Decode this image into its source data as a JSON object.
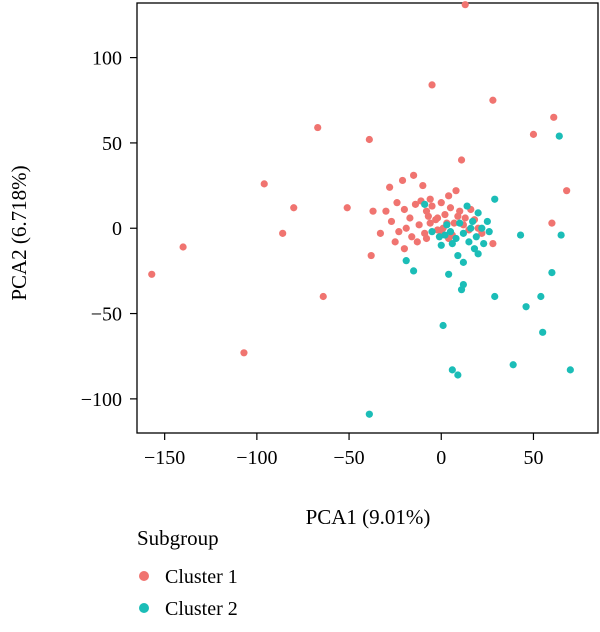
{
  "colors": {
    "cluster_1": "#F07470",
    "cluster_2": "#1BBDB7",
    "frame": "#000000",
    "background": "#ffffff"
  },
  "chart_data": {
    "type": "scatter",
    "title": "",
    "xlabel": "PCA1 (9.01%)",
    "ylabel": "PCA2 (6.718%)",
    "xlim": [
      -165,
      85
    ],
    "ylim": [
      -120,
      132
    ],
    "xticks": [
      -150,
      -100,
      -50,
      0,
      50
    ],
    "yticks": [
      -100,
      -50,
      0,
      50,
      100
    ],
    "xtick_labels": [
      "−150",
      "−100",
      "−50",
      "0",
      "50"
    ],
    "ytick_labels": [
      "−100",
      "−50",
      "0",
      "50",
      "100"
    ],
    "grid": false,
    "legend": {
      "title": "Subgroup",
      "position": "bottom-left"
    },
    "series": [
      {
        "name": "Cluster 1",
        "color": "#F07470",
        "points": [
          [
            13,
            131
          ],
          [
            -5,
            84
          ],
          [
            28,
            75
          ],
          [
            61,
            65
          ],
          [
            -67,
            59
          ],
          [
            50,
            55
          ],
          [
            -39,
            52
          ],
          [
            11,
            40
          ],
          [
            68,
            22
          ],
          [
            -96,
            26
          ],
          [
            -80,
            12
          ],
          [
            -51,
            12
          ],
          [
            -37,
            10
          ],
          [
            -140,
            -11
          ],
          [
            -86,
            -3
          ],
          [
            -38,
            -16
          ],
          [
            -157,
            -27
          ],
          [
            -64,
            -40
          ],
          [
            -107,
            -73
          ],
          [
            60,
            3
          ],
          [
            28,
            -9
          ],
          [
            -21,
            28
          ],
          [
            -15,
            31
          ],
          [
            -10,
            25
          ],
          [
            -6,
            17
          ],
          [
            4,
            19
          ],
          [
            8,
            22
          ],
          [
            -28,
            24
          ],
          [
            -24,
            15
          ],
          [
            -20,
            11
          ],
          [
            -17,
            6
          ],
          [
            -14,
            14
          ],
          [
            -11,
            16
          ],
          [
            -8,
            10
          ],
          [
            -5,
            13
          ],
          [
            -3,
            5
          ],
          [
            0,
            15
          ],
          [
            2,
            8
          ],
          [
            5,
            12
          ],
          [
            7,
            3
          ],
          [
            10,
            10
          ],
          [
            13,
            6
          ],
          [
            16,
            11
          ],
          [
            18,
            5
          ],
          [
            -30,
            10
          ],
          [
            -27,
            4
          ],
          [
            -23,
            -2
          ],
          [
            -19,
            0
          ],
          [
            -16,
            -5
          ],
          [
            -12,
            2
          ],
          [
            -9,
            -3
          ],
          [
            -6,
            3
          ],
          [
            -2,
            -1
          ],
          [
            1,
            0
          ],
          [
            4,
            -6
          ],
          [
            -33,
            -3
          ],
          [
            -25,
            -8
          ],
          [
            -20,
            -12
          ],
          [
            -13,
            -8
          ],
          [
            -8,
            -6
          ],
          [
            0,
            -2
          ],
          [
            6,
            -4
          ],
          [
            12,
            2
          ],
          [
            15,
            -1
          ],
          [
            -2,
            6
          ],
          [
            -7,
            7
          ],
          [
            3,
            3
          ],
          [
            9,
            7
          ],
          [
            20,
            0
          ],
          [
            22,
            -3
          ]
        ]
      },
      {
        "name": "Cluster 2",
        "color": "#1BBDB7",
        "points": [
          [
            64,
            54
          ],
          [
            29,
            17
          ],
          [
            -9,
            14
          ],
          [
            43,
            -4
          ],
          [
            65,
            -4
          ],
          [
            60,
            -26
          ],
          [
            -19,
            -19
          ],
          [
            -15,
            -25
          ],
          [
            4,
            -27
          ],
          [
            11,
            -36
          ],
          [
            29,
            -40
          ],
          [
            54,
            -40
          ],
          [
            46,
            -46
          ],
          [
            1,
            -57
          ],
          [
            55,
            -61
          ],
          [
            39,
            -80
          ],
          [
            6,
            -83
          ],
          [
            9,
            -86
          ],
          [
            70,
            -83
          ],
          [
            -39,
            -109
          ],
          [
            12,
            -33
          ],
          [
            14,
            13
          ],
          [
            20,
            9
          ],
          [
            17,
            4
          ],
          [
            22,
            0
          ],
          [
            25,
            4
          ],
          [
            12,
            -3
          ],
          [
            15,
            -8
          ],
          [
            18,
            -12
          ],
          [
            20,
            -15
          ],
          [
            9,
            -16
          ],
          [
            12,
            -20
          ],
          [
            3,
            2
          ],
          [
            5,
            -2
          ],
          [
            8,
            -6
          ],
          [
            -1,
            -5
          ],
          [
            0,
            -10
          ],
          [
            6,
            -9
          ],
          [
            26,
            -2
          ],
          [
            19,
            -5
          ],
          [
            23,
            -9
          ],
          [
            16,
            0
          ],
          [
            2,
            -4
          ],
          [
            -5,
            -2
          ],
          [
            10,
            3
          ]
        ]
      }
    ]
  }
}
